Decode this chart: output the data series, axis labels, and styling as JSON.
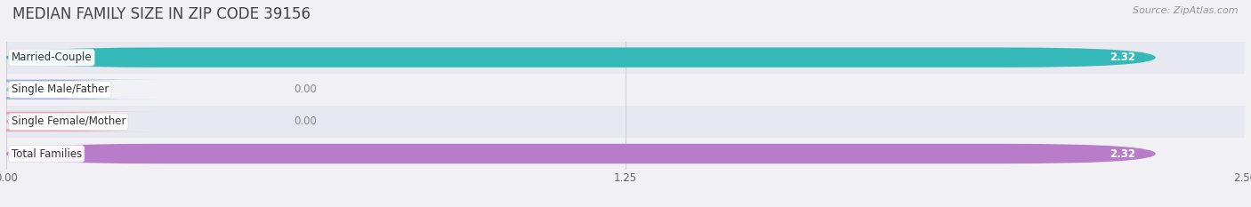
{
  "title": "MEDIAN FAMILY SIZE IN ZIP CODE 39156",
  "source": "Source: ZipAtlas.com",
  "categories": [
    "Married-Couple",
    "Single Male/Father",
    "Single Female/Mother",
    "Total Families"
  ],
  "values": [
    2.32,
    0.0,
    0.0,
    2.32
  ],
  "bar_colors": [
    "#35b8b8",
    "#a0aee0",
    "#f0a0b8",
    "#b87cc8"
  ],
  "bar_height": 0.62,
  "xlim": [
    0,
    2.5
  ],
  "xticks": [
    0.0,
    1.25,
    2.5
  ],
  "xtick_labels": [
    "0.00",
    "1.25",
    "2.50"
  ],
  "background_color": "#f0f0f5",
  "row_bg_even": "#e8e8f0",
  "row_bg_odd": "#f0f0f5",
  "title_fontsize": 12,
  "label_fontsize": 8.5,
  "value_fontsize": 8.5,
  "source_fontsize": 8
}
